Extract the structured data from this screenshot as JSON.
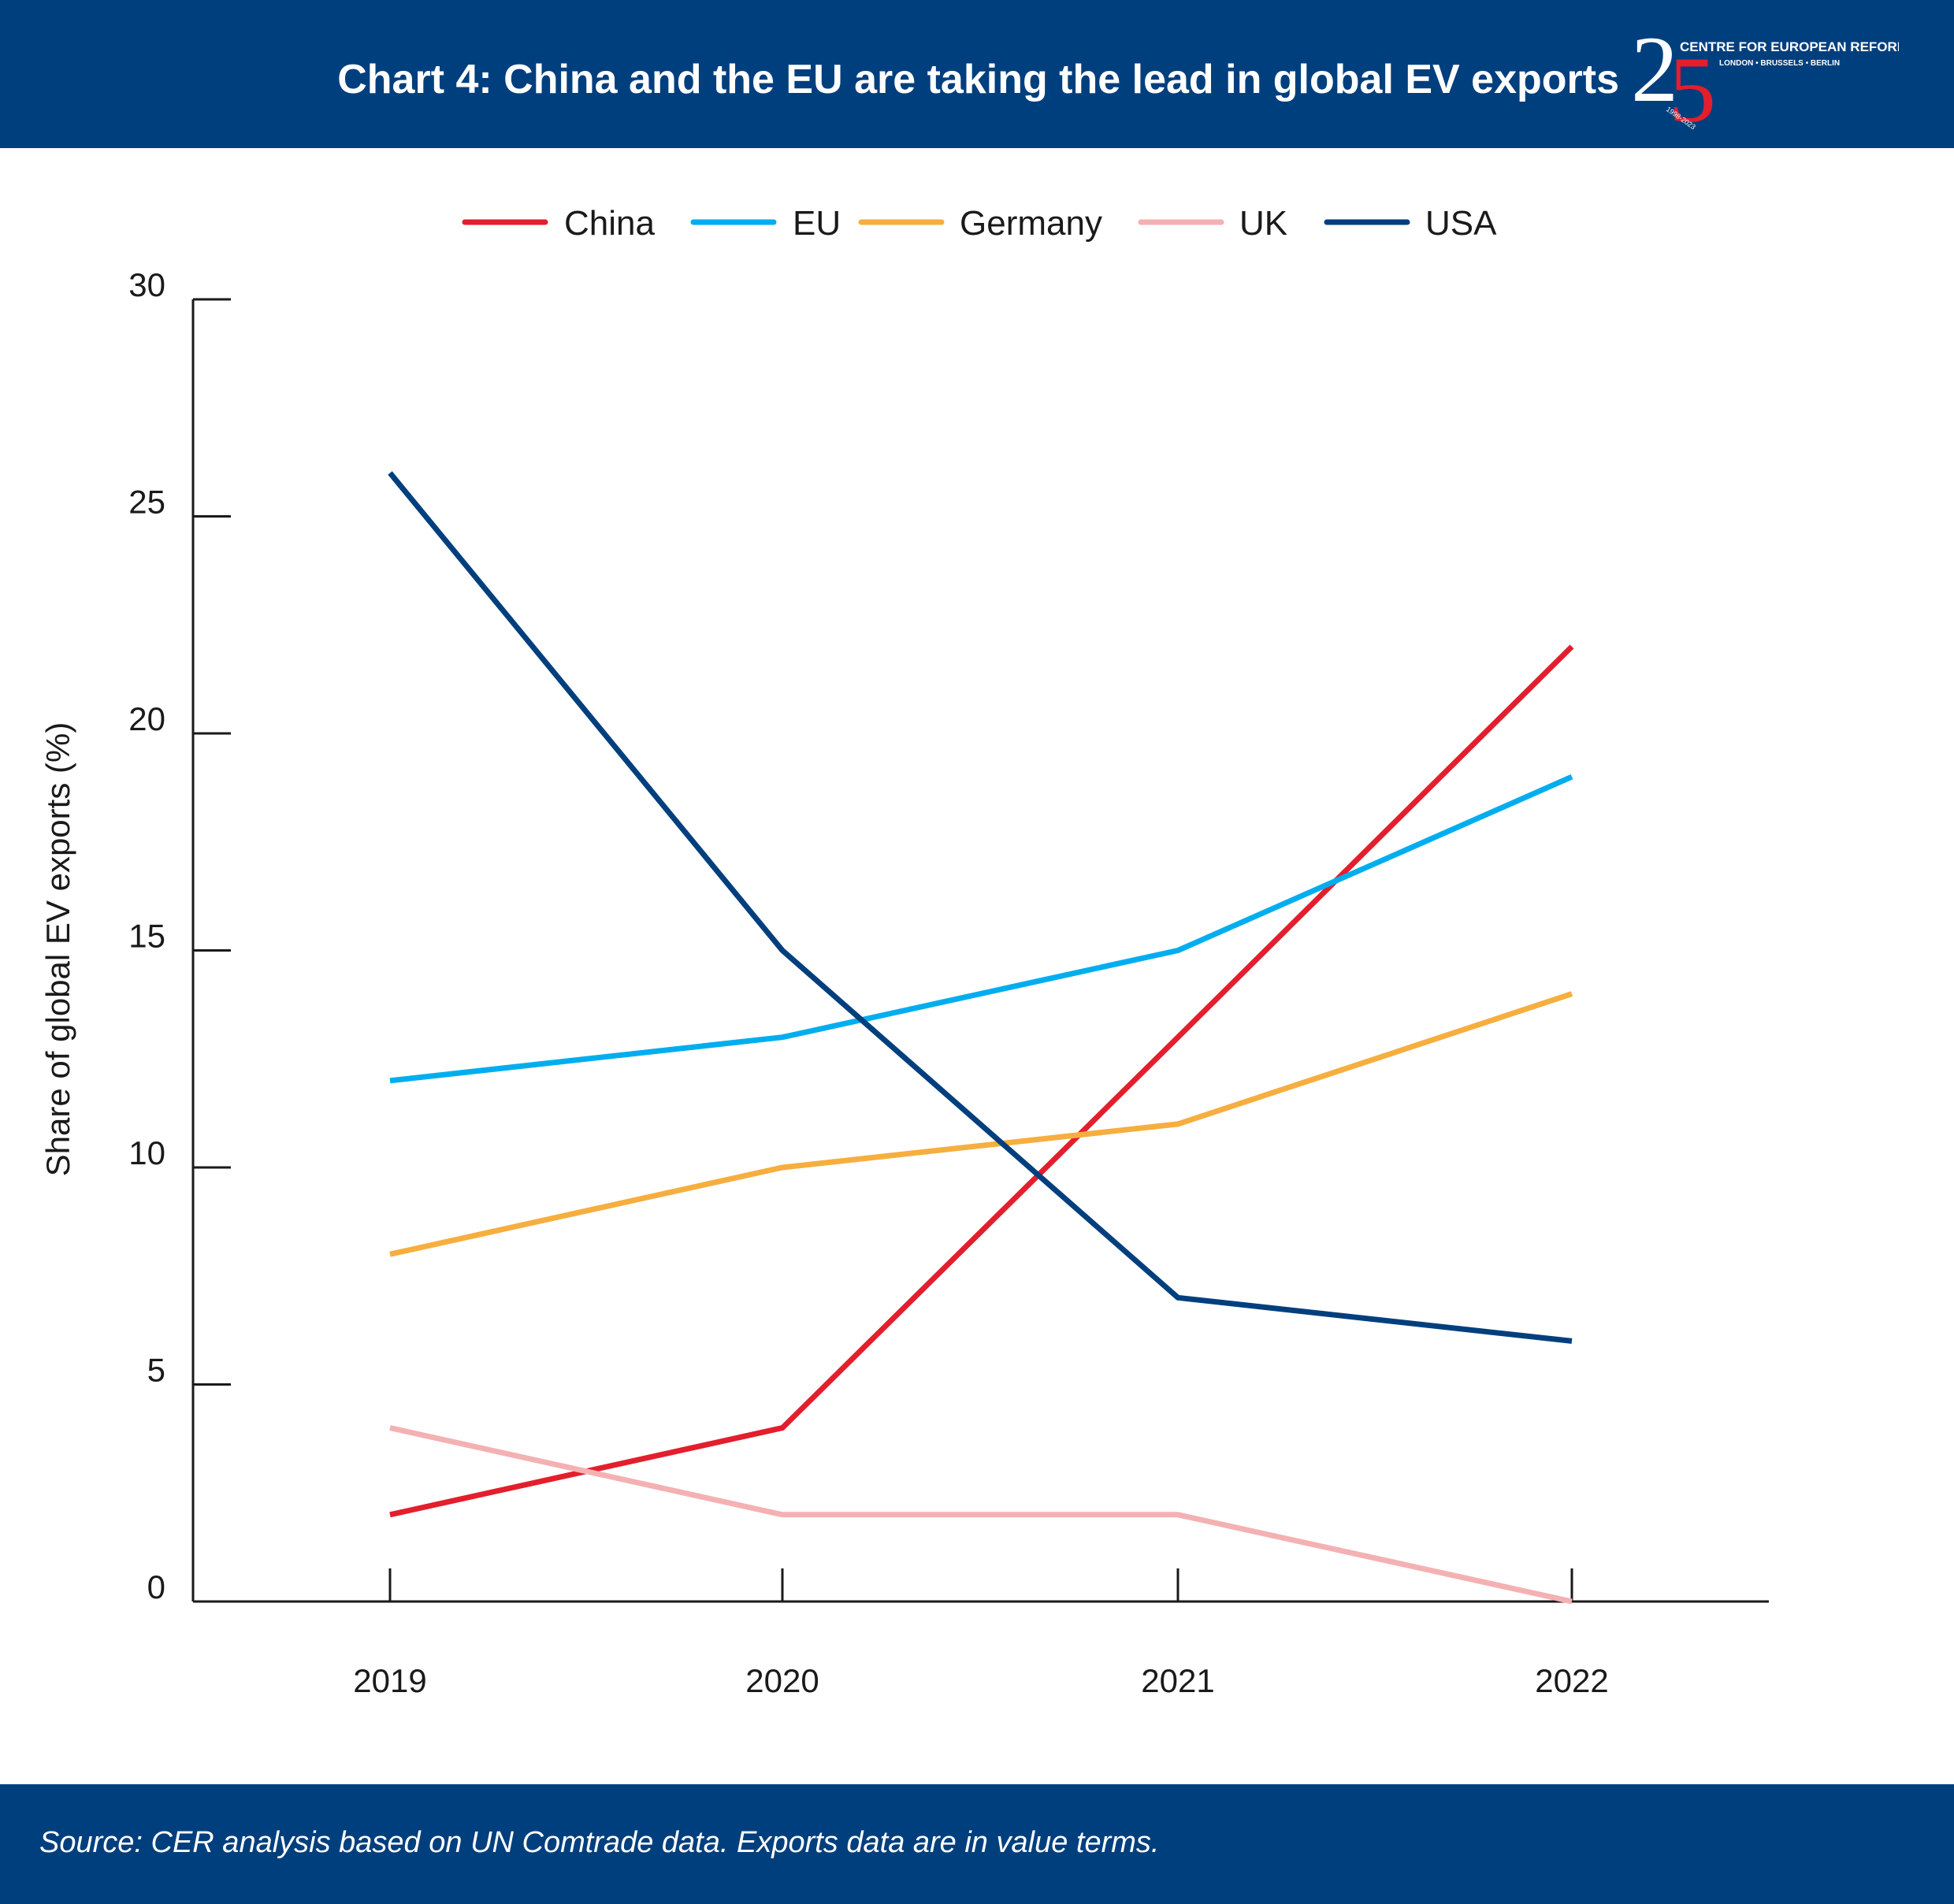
{
  "header": {
    "title": "Chart 4: China and the EU are taking the lead in global EV exports",
    "logo": {
      "numeral": "25",
      "org_name": "CENTRE FOR EUROPEAN REFORM",
      "cities": "LONDON • BRUSSELS • BERLIN",
      "years": "1998-2023"
    }
  },
  "footer": {
    "source": "Source: CER analysis based on UN Comtrade data. Exports data are in value terms."
  },
  "chart_data": {
    "type": "line",
    "title": "Chart 4: China and the EU are taking the lead in global EV exports",
    "xlabel": "",
    "ylabel": "Share of global EV exports (%)",
    "x": [
      "2019",
      "2020",
      "2021",
      "2022"
    ],
    "ylim": [
      0,
      30
    ],
    "yticks": [
      0,
      5,
      10,
      15,
      20,
      25,
      30
    ],
    "grid": false,
    "legend_position": "top",
    "series": [
      {
        "name": "China",
        "color": "#e31e2d",
        "values": [
          2,
          4,
          13,
          22
        ]
      },
      {
        "name": "EU",
        "color": "#00aeef",
        "values": [
          12,
          13,
          15,
          19
        ]
      },
      {
        "name": "Germany",
        "color": "#f6ae3f",
        "values": [
          8,
          10,
          11,
          14
        ]
      },
      {
        "name": "UK",
        "color": "#f4b1b3",
        "values": [
          4,
          2,
          2,
          0
        ]
      },
      {
        "name": "USA",
        "color": "#003f7d",
        "values": [
          26,
          15,
          7,
          6
        ]
      }
    ]
  }
}
